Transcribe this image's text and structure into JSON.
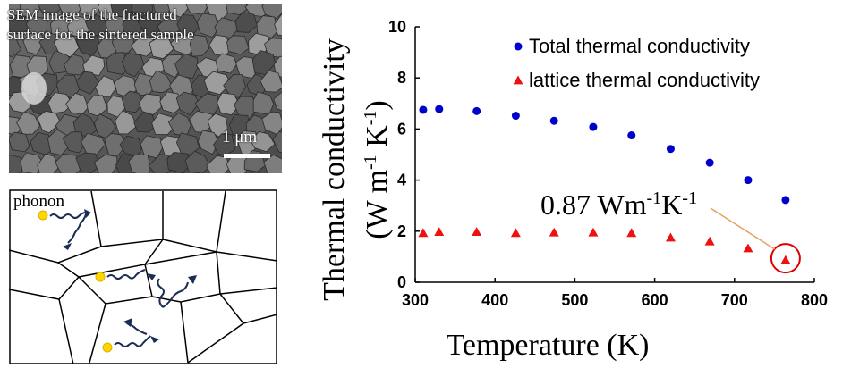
{
  "sem": {
    "caption_line1": "SEM image of the fractured",
    "caption_line2": "surface for the sintered sample",
    "scale_label": "1 μm"
  },
  "schematic": {
    "phonon_label": "phonon"
  },
  "chart_data": {
    "type": "scatter",
    "xlabel": "Temperature (K)",
    "ylabel": "Thermal conductivity (W m-1 K-1)",
    "xlim": [
      300,
      800
    ],
    "ylim": [
      0,
      10
    ],
    "xticks": [
      300,
      400,
      500,
      600,
      700,
      800
    ],
    "yticks": [
      0,
      2,
      4,
      6,
      8,
      10
    ],
    "legend_position": "top-right",
    "grid": false,
    "series": [
      {
        "name": "Total thermal conductivity",
        "marker": "circle",
        "color": "#0000cc",
        "x": [
          310,
          330,
          377,
          426,
          474,
          523,
          571,
          620,
          669,
          717,
          764
        ],
        "y": [
          6.75,
          6.78,
          6.7,
          6.52,
          6.32,
          6.08,
          5.75,
          5.22,
          4.68,
          4.0,
          3.22
        ]
      },
      {
        "name": "lattice thermal conductivity",
        "marker": "triangle",
        "color": "#ee1111",
        "x": [
          310,
          330,
          377,
          426,
          474,
          523,
          571,
          620,
          669,
          717,
          764
        ],
        "y": [
          1.93,
          1.97,
          1.97,
          1.93,
          1.95,
          1.95,
          1.93,
          1.75,
          1.6,
          1.33,
          0.87
        ]
      }
    ],
    "annotation": {
      "text_main": "0.87 Wm",
      "sup1": "-1",
      "text_mid": "K",
      "sup2": "-1",
      "target_x": 764,
      "target_y": 0.87,
      "circle_color": "#dd0000",
      "line_color": "#e8a060"
    }
  }
}
